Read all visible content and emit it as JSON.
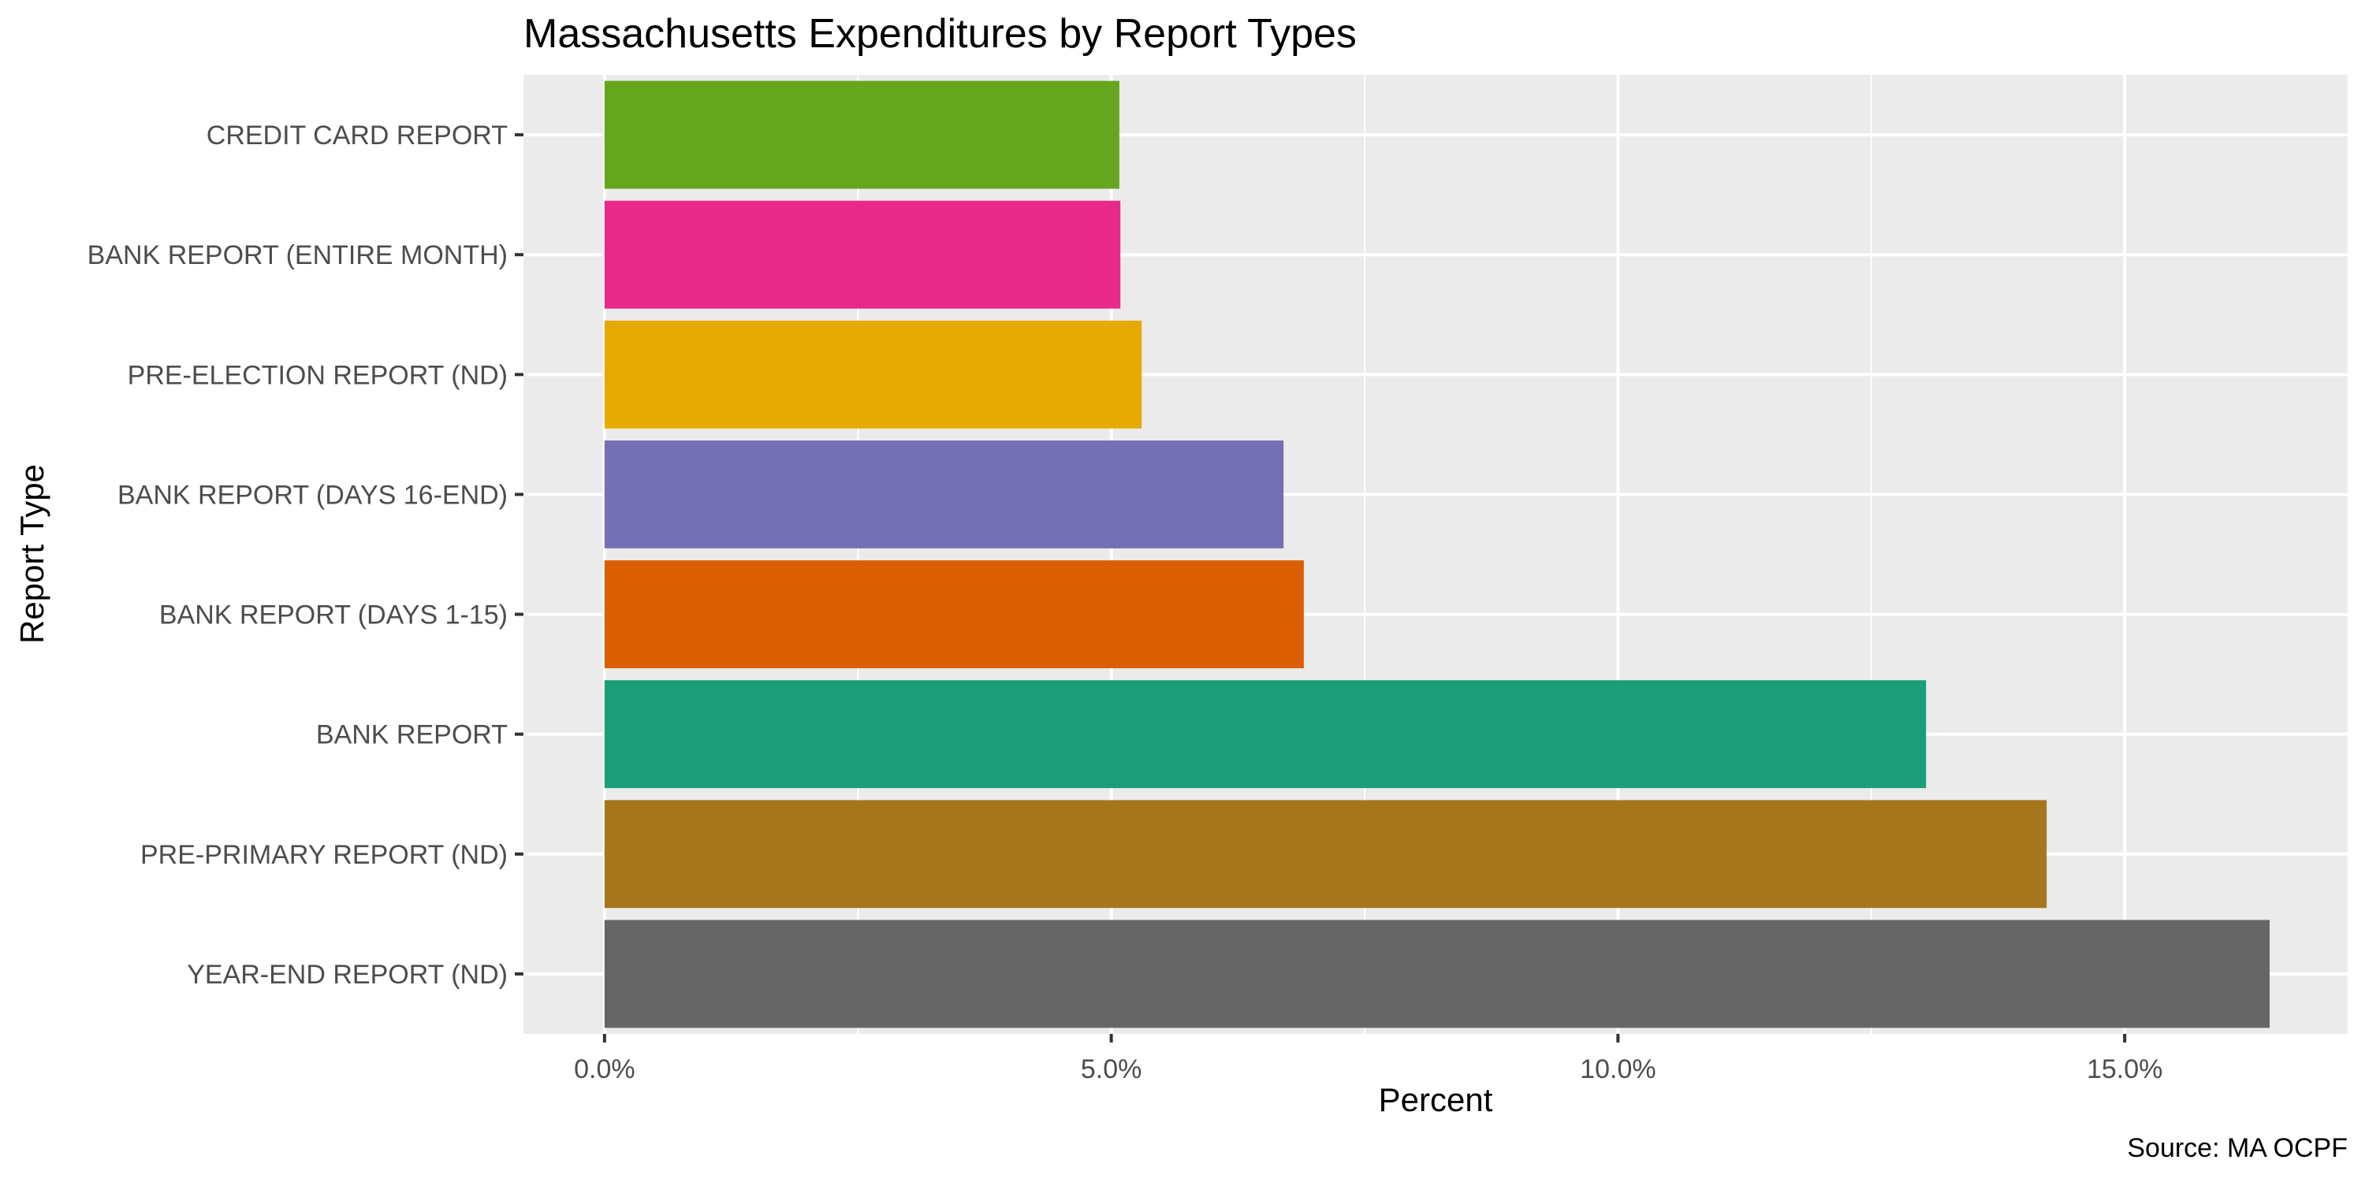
{
  "chart_data": {
    "type": "bar",
    "orientation": "horizontal",
    "title": "Massachusetts Expenditures by Report Types",
    "xlabel": "Percent",
    "ylabel": "Report Type",
    "caption": "Source: MA OCPF",
    "categories": [
      "CREDIT CARD REPORT",
      "BANK REPORT (ENTIRE MONTH)",
      "PRE-ELECTION REPORT (ND)",
      "BANK REPORT (DAYS 16-END)",
      "BANK REPORT (DAYS 1-15)",
      "BANK REPORT",
      "PRE-PRIMARY REPORT (ND)",
      "YEAR-END REPORT (ND)"
    ],
    "values": [
      5.08,
      5.09,
      5.3,
      6.7,
      6.9,
      13.04,
      14.23,
      16.43
    ],
    "colors": [
      "#66a61e",
      "#e7298a",
      "#e6ab02",
      "#7570b3",
      "#d95f02",
      "#1b9e77",
      "#a6761d",
      "#666666"
    ],
    "xlim": [
      -0.8,
      17.2
    ],
    "x_ticks": [
      0,
      5,
      10,
      15
    ],
    "x_tick_labels": [
      "0.0%",
      "5.0%",
      "10.0%",
      "15.0%"
    ],
    "grid": true,
    "legend": "none",
    "panel_background": "#ebebeb"
  }
}
